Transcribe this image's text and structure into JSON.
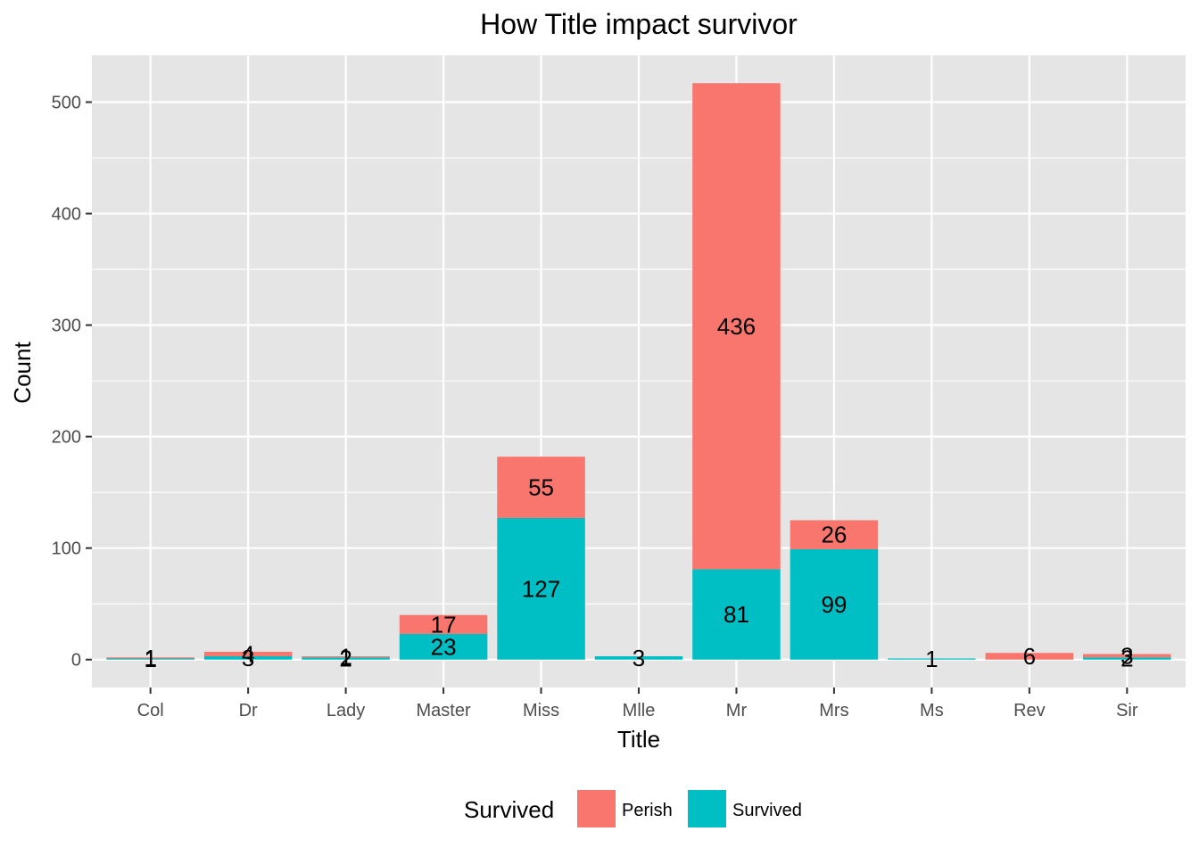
{
  "chart_data": {
    "type": "bar",
    "stacked": true,
    "title": "How Title impact survivor",
    "xlabel": "Title",
    "ylabel": "Count",
    "categories": [
      "Col",
      "Dr",
      "Lady",
      "Master",
      "Miss",
      "Mlle",
      "Mr",
      "Mrs",
      "Ms",
      "Rev",
      "Sir"
    ],
    "series": [
      {
        "name": "Perish",
        "color": "#f8766d",
        "values": [
          1,
          4,
          1,
          17,
          55,
          0,
          436,
          26,
          0,
          6,
          3
        ]
      },
      {
        "name": "Survived",
        "color": "#00bfc4",
        "values": [
          1,
          3,
          2,
          23,
          127,
          3,
          81,
          99,
          1,
          0,
          2
        ]
      }
    ],
    "ylim": [
      -25,
      542
    ],
    "yticks": [
      0,
      100,
      200,
      300,
      400,
      500
    ],
    "grid": true,
    "legend": {
      "title": "Survived",
      "position": "bottom"
    }
  }
}
